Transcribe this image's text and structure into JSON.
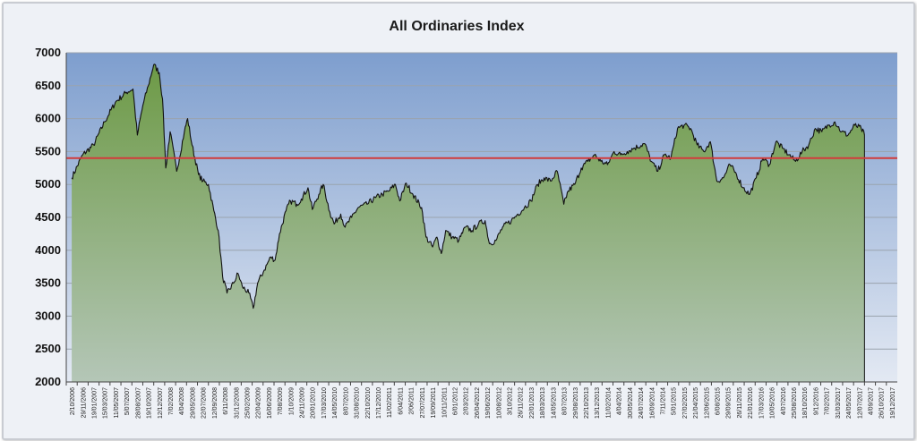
{
  "chart_data": {
    "type": "area",
    "title": "All Ordinaries Index",
    "xlabel": "",
    "ylabel": "",
    "ylim": [
      2000,
      7000
    ],
    "yticks": [
      2000,
      2500,
      3000,
      3500,
      4000,
      4500,
      5000,
      5500,
      6000,
      6500,
      7000
    ],
    "grid": "horizontal",
    "legend": "none",
    "reference_line": {
      "value": 5400,
      "color": "#d13b3b"
    },
    "colors": {
      "plot_top": "#7e9ece",
      "plot_bottom": "#e3e9f3",
      "area_top": "#6d9a46",
      "area_bottom": "#b4c6b7",
      "line": "#111111",
      "grid": "#9aa3ad"
    },
    "x_tick_labels": [
      "2/10/2006",
      "29/11/2006",
      "19/01/2007",
      "15/03/2007",
      "11/05/2007",
      "5/07/2007",
      "28/08/2007",
      "19/10/2007",
      "12/12/2007",
      "7/02/2008",
      "4/04/2008",
      "29/05/2008",
      "22/07/2008",
      "12/09/2008",
      "6/11/2008",
      "31/12/2008",
      "25/02/2009",
      "22/04/2009",
      "16/06/2009",
      "7/08/2009",
      "1/10/2009",
      "24/11/2009",
      "20/01/2010",
      "17/03/2010",
      "14/05/2010",
      "8/07/2010",
      "31/08/2010",
      "22/10/2010",
      "17/12/2010",
      "11/02/2011",
      "6/04/2011",
      "2/06/2011",
      "27/07/2011",
      "19/09/2011",
      "10/11/2011",
      "6/01/2012",
      "2/03/2012",
      "26/04/2012",
      "19/06/2012",
      "10/08/2012",
      "3/10/2012",
      "26/11/2012",
      "22/01/2013",
      "18/03/2013",
      "14/05/2013",
      "8/07/2013",
      "29/08/2013",
      "22/10/2013",
      "13/12/2013",
      "11/02/2014",
      "4/04/2014",
      "30/05/2014",
      "24/07/2014",
      "16/09/2014",
      "7/11/2014",
      "5/01/2015",
      "27/02/2015",
      "21/04/2015",
      "12/06/2015",
      "6/08/2015",
      "29/09/2015",
      "26/11/2015",
      "21/01/2016",
      "17/03/2016",
      "10/05/2016",
      "4/07/2016",
      "25/08/2016",
      "18/10/2016",
      "9/12/2016",
      "7/02/2017",
      "31/03/2017",
      "24/05/2017",
      "12/07/2017",
      "4/09/2017",
      "26/10/2017",
      "19/12/2017"
    ],
    "data_end_index": 72.5,
    "series": [
      {
        "values": [
          [
            0,
            5100
          ],
          [
            1,
            5450
          ],
          [
            2,
            5600
          ],
          [
            3,
            5950
          ],
          [
            4,
            6250
          ],
          [
            5,
            6400
          ],
          [
            5.6,
            6450
          ],
          [
            6,
            5750
          ],
          [
            6.5,
            6200
          ],
          [
            7,
            6500
          ],
          [
            7.5,
            6820
          ],
          [
            8,
            6700
          ],
          [
            8.3,
            6300
          ],
          [
            8.6,
            5250
          ],
          [
            9,
            5800
          ],
          [
            9.6,
            5200
          ],
          [
            10.3,
            5800
          ],
          [
            10.6,
            6000
          ],
          [
            11,
            5600
          ],
          [
            11.6,
            5150
          ],
          [
            12,
            5050
          ],
          [
            12.5,
            5000
          ],
          [
            13,
            4600
          ],
          [
            13.4,
            4300
          ],
          [
            13.8,
            3600
          ],
          [
            14.2,
            3350
          ],
          [
            14.8,
            3500
          ],
          [
            15.2,
            3650
          ],
          [
            15.6,
            3450
          ],
          [
            16.2,
            3350
          ],
          [
            16.6,
            3120
          ],
          [
            17,
            3500
          ],
          [
            17.6,
            3700
          ],
          [
            18.2,
            3900
          ],
          [
            18.6,
            3850
          ],
          [
            19,
            4250
          ],
          [
            19.6,
            4600
          ],
          [
            20,
            4750
          ],
          [
            20.6,
            4700
          ],
          [
            21,
            4780
          ],
          [
            21.6,
            4950
          ],
          [
            22,
            4620
          ],
          [
            22.6,
            4850
          ],
          [
            23,
            5000
          ],
          [
            23.6,
            4580
          ],
          [
            24,
            4400
          ],
          [
            24.6,
            4550
          ],
          [
            25,
            4350
          ],
          [
            25.6,
            4500
          ],
          [
            26.2,
            4650
          ],
          [
            27,
            4700
          ],
          [
            27.8,
            4800
          ],
          [
            28.4,
            4850
          ],
          [
            29,
            4900
          ],
          [
            29.6,
            5000
          ],
          [
            30,
            4750
          ],
          [
            30.6,
            5020
          ],
          [
            31.2,
            4850
          ],
          [
            32,
            4650
          ],
          [
            32.4,
            4200
          ],
          [
            33,
            4050
          ],
          [
            33.4,
            4200
          ],
          [
            33.8,
            3950
          ],
          [
            34.2,
            4300
          ],
          [
            34.8,
            4200
          ],
          [
            35.4,
            4150
          ],
          [
            36,
            4350
          ],
          [
            36.6,
            4300
          ],
          [
            37.2,
            4400
          ],
          [
            37.8,
            4450
          ],
          [
            38.2,
            4100
          ],
          [
            38.8,
            4150
          ],
          [
            39.4,
            4350
          ],
          [
            40.2,
            4450
          ],
          [
            40.8,
            4550
          ],
          [
            41.4,
            4650
          ],
          [
            42,
            4750
          ],
          [
            42.6,
            5000
          ],
          [
            43.2,
            5100
          ],
          [
            43.8,
            5050
          ],
          [
            44.4,
            5200
          ],
          [
            45,
            4700
          ],
          [
            45.4,
            4900
          ],
          [
            46,
            5000
          ],
          [
            46.6,
            5250
          ],
          [
            47.2,
            5350
          ],
          [
            47.8,
            5450
          ],
          [
            48.4,
            5350
          ],
          [
            49,
            5300
          ],
          [
            49.6,
            5500
          ],
          [
            50.2,
            5450
          ],
          [
            50.8,
            5500
          ],
          [
            51.4,
            5550
          ],
          [
            52.4,
            5620
          ],
          [
            53,
            5350
          ],
          [
            53.6,
            5200
          ],
          [
            54.2,
            5450
          ],
          [
            54.8,
            5400
          ],
          [
            55.4,
            5850
          ],
          [
            56,
            5900
          ],
          [
            56.6,
            5850
          ],
          [
            57.2,
            5600
          ],
          [
            57.8,
            5500
          ],
          [
            58.4,
            5650
          ],
          [
            59,
            5050
          ],
          [
            59.6,
            5100
          ],
          [
            60.2,
            5300
          ],
          [
            60.8,
            5150
          ],
          [
            61.4,
            4950
          ],
          [
            62,
            4850
          ],
          [
            62.6,
            5100
          ],
          [
            63.2,
            5400
          ],
          [
            63.8,
            5300
          ],
          [
            64.4,
            5650
          ],
          [
            65,
            5550
          ],
          [
            65.6,
            5450
          ],
          [
            66.2,
            5350
          ],
          [
            66.8,
            5500
          ],
          [
            67.4,
            5600
          ],
          [
            68,
            5850
          ],
          [
            68.6,
            5800
          ],
          [
            69.2,
            5900
          ],
          [
            69.8,
            5950
          ],
          [
            70.4,
            5800
          ],
          [
            71,
            5750
          ],
          [
            71.6,
            5900
          ],
          [
            72.2,
            5850
          ],
          [
            72.5,
            5750
          ]
        ]
      }
    ]
  }
}
